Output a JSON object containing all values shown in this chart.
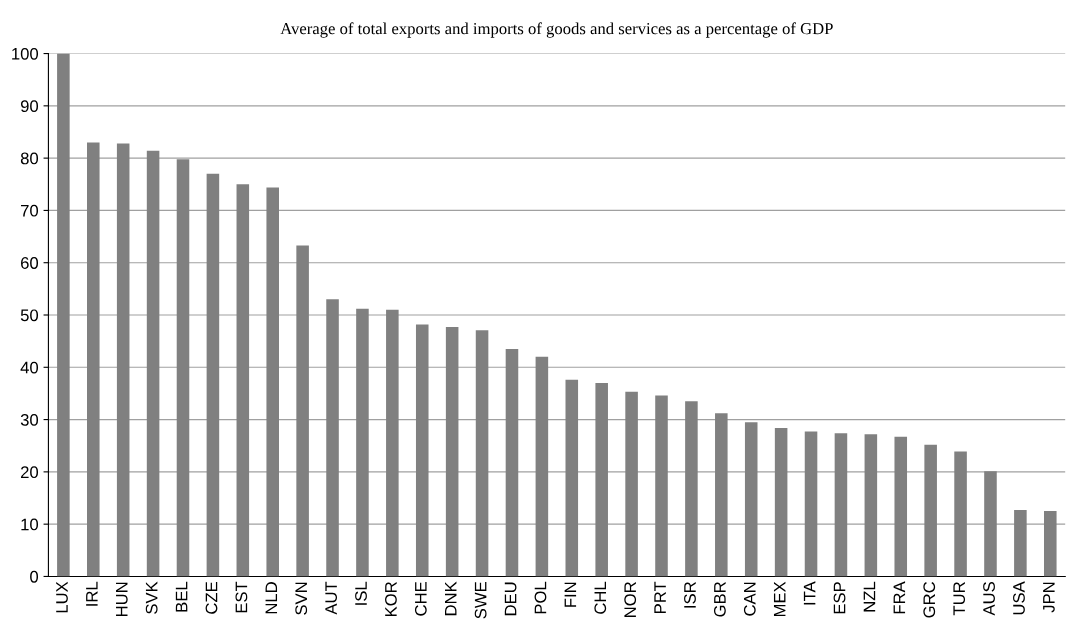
{
  "chart_data": {
    "type": "bar",
    "title": "Average of total exports and imports of goods and services as a percentage of GDP",
    "categories": [
      "LUX",
      "IRL",
      "HUN",
      "SVK",
      "BEL",
      "CZE",
      "EST",
      "NLD",
      "SVN",
      "AUT",
      "ISL",
      "KOR",
      "CHE",
      "DNK",
      "SWE",
      "DEU",
      "POL",
      "FIN",
      "CHL",
      "NOR",
      "PRT",
      "ISR",
      "GBR",
      "CAN",
      "MEX",
      "ITA",
      "ESP",
      "NZL",
      "FRA",
      "GRC",
      "TUR",
      "AUS",
      "USA",
      "JPN"
    ],
    "values": [
      100,
      83,
      82.8,
      81.4,
      79.8,
      77,
      75,
      74.4,
      63.3,
      53,
      51.2,
      51,
      48.2,
      47.7,
      47.1,
      43.5,
      42,
      37.6,
      37,
      35.3,
      34.6,
      33.5,
      31.2,
      29.5,
      28.4,
      27.7,
      27.4,
      27.2,
      26.7,
      25.2,
      23.9,
      20.1,
      12.7,
      12.5
    ],
    "color": "#808080",
    "ylim": [
      0,
      100
    ],
    "yticks": [
      0,
      10,
      20,
      30,
      40,
      50,
      60,
      70,
      80,
      90,
      100
    ],
    "grid": "y"
  }
}
